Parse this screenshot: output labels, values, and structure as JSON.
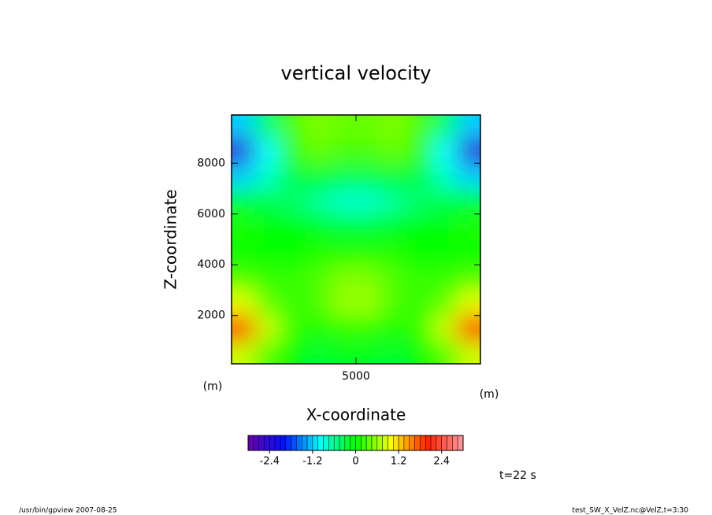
{
  "chart_data": {
    "type": "contour",
    "title": "vertical velocity",
    "xlabel": "X-coordinate",
    "ylabel": "Z-coordinate",
    "xunit": "(m)",
    "yunit": "(m)",
    "annotation": "t=22 s",
    "footer_left": "/usr/bin/gpview  2007-08-25",
    "footer_right": "test_SW_X_VelZ.nc@VelZ,t=3:30",
    "xlim": [
      100,
      9900
    ],
    "ylim": [
      100,
      9900
    ],
    "xticks": [
      5000
    ],
    "yticks": [
      2000,
      4000,
      6000,
      8000
    ],
    "x": [
      500,
      1500,
      2500,
      3500,
      4500,
      5500,
      6500,
      7500,
      8500,
      9500
    ],
    "y": [
      500,
      1500,
      2500,
      3500,
      4500,
      5500,
      6500,
      7500,
      8500,
      9500
    ],
    "z": [
      [
        0.8,
        0.3,
        0,
        -0.2,
        -0.1,
        -0.1,
        -0.2,
        0,
        0.3,
        0.8
      ],
      [
        1.9,
        0.8,
        0.2,
        0.1,
        0.2,
        0.2,
        0.1,
        0.2,
        0.8,
        1.9
      ],
      [
        0.9,
        0.4,
        0.2,
        0.3,
        0.6,
        0.6,
        0.3,
        0.2,
        0.4,
        0.9
      ],
      [
        0.3,
        0.2,
        0.2,
        0.3,
        0.5,
        0.5,
        0.3,
        0.2,
        0.2,
        0.3
      ],
      [
        0,
        0,
        0,
        0.1,
        0.1,
        0.1,
        0.1,
        0,
        0,
        0
      ],
      [
        0.1,
        0,
        0,
        -0.1,
        -0.2,
        -0.2,
        -0.1,
        0,
        0,
        0.1
      ],
      [
        -0.2,
        -0.3,
        -0.4,
        -0.6,
        -0.8,
        -0.8,
        -0.6,
        -0.4,
        -0.3,
        -0.2
      ],
      [
        -1.2,
        -0.8,
        -0.3,
        -0.2,
        -0.3,
        -0.3,
        -0.2,
        -0.3,
        -0.8,
        -1.2
      ],
      [
        -2.4,
        -1.0,
        0.2,
        0.4,
        0.3,
        0.3,
        0.4,
        0.2,
        -1.0,
        -2.4
      ],
      [
        -1.2,
        -0.4,
        0.3,
        0.5,
        0.4,
        0.4,
        0.5,
        0.3,
        -0.4,
        -1.2
      ]
    ],
    "clim": [
      -3,
      3
    ],
    "cticks": [
      -2.4,
      -1.2,
      0,
      1.2,
      2.4
    ],
    "colormap": [
      "#6a00a8",
      "#0010ff",
      "#00ffff",
      "#00ff00",
      "#ffff00",
      "#ff2000",
      "#ff9aa0"
    ]
  }
}
